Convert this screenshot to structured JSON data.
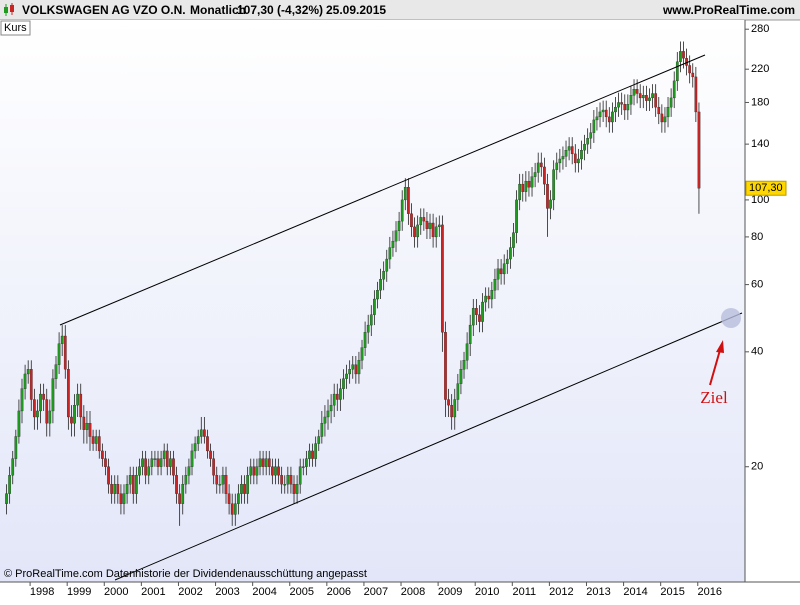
{
  "chart_data": {
    "type": "candlestick",
    "title": "VOLKSWAGEN AG VZO O.N.",
    "interval": "Monatlich",
    "quote": "107,30 (-4,32%)",
    "date": "25.09.2015",
    "source": "www.ProRealTime.com",
    "panel_label": "Kurs",
    "footer": "© ProRealTime.com  Datenhistorie der Dividendenausschüttung angepasst",
    "annotation": "Ziel",
    "up_color": "#1f9a1f",
    "down_color": "#c82424",
    "log_scale": true,
    "ylim": [
      10.1,
      296
    ],
    "yticks": [
      20,
      40,
      60,
      80,
      100,
      140,
      180,
      220,
      280
    ],
    "xlim": [
      1997,
      2016.95
    ],
    "xticks": [
      1998,
      1999,
      2000,
      2001,
      2002,
      2003,
      2004,
      2005,
      2006,
      2007,
      2008,
      2009,
      2010,
      2011,
      2012,
      2013,
      2014,
      2015,
      2016
    ],
    "last_price": {
      "value": 107.3,
      "label": "107,30"
    },
    "open": [
      16,
      17,
      19,
      21,
      24,
      28,
      32,
      35,
      36,
      30,
      27,
      28,
      31,
      30,
      26,
      28,
      34,
      37,
      42,
      44,
      36,
      27,
      26,
      29,
      31,
      27,
      25,
      26,
      24,
      23,
      24,
      22,
      21,
      20,
      18,
      17,
      18,
      17,
      16,
      17,
      18,
      19,
      17,
      19,
      20,
      21,
      19,
      20,
      21,
      21,
      20,
      21,
      22,
      20,
      21,
      19,
      17,
      16,
      18,
      19,
      20,
      22,
      23,
      24,
      25,
      24,
      22,
      21,
      19,
      18,
      18,
      19,
      17,
      16,
      15,
      16,
      17,
      18,
      17,
      19,
      20,
      19,
      20,
      21,
      20,
      21,
      20,
      19,
      20,
      19,
      18,
      18,
      19,
      18,
      17,
      18,
      20,
      20,
      21,
      22,
      21,
      23,
      24,
      26,
      27,
      28,
      29,
      31,
      30,
      32,
      34,
      35,
      36,
      37,
      35,
      38,
      41,
      45,
      47,
      50,
      55,
      58,
      62,
      65,
      70,
      75,
      78,
      83,
      88,
      100,
      108,
      92,
      85,
      80,
      86,
      90,
      88,
      84,
      87,
      80,
      85,
      86,
      45,
      30,
      29,
      27,
      30,
      33,
      36,
      38,
      42,
      47,
      52,
      50,
      48,
      54,
      56,
      55,
      58,
      62,
      66,
      64,
      68,
      70,
      75,
      82,
      100,
      110,
      105,
      112,
      108,
      115,
      118,
      125,
      122,
      110,
      95,
      100,
      120,
      125,
      128,
      130,
      135,
      138,
      132,
      125,
      128,
      135,
      140,
      145,
      150,
      162,
      165,
      170,
      172,
      165,
      160,
      170,
      175,
      180,
      178,
      172,
      178,
      188,
      195,
      190,
      185,
      188,
      182,
      185,
      190,
      175,
      168,
      160,
      165,
      175,
      185,
      205,
      230,
      245,
      235,
      225,
      215,
      210,
      170
    ],
    "high": [
      18,
      20,
      22,
      25,
      30,
      34,
      37,
      38,
      38,
      32,
      30,
      33,
      33,
      32,
      30,
      36,
      39,
      45,
      47,
      47,
      38,
      29,
      31,
      33,
      33,
      29,
      28,
      28,
      25,
      25,
      25,
      23,
      22,
      21,
      19,
      19,
      19,
      18,
      18,
      19,
      20,
      20,
      20,
      21,
      22,
      22,
      21,
      22,
      22,
      22,
      22,
      23,
      23,
      22,
      22,
      20,
      18,
      19,
      20,
      21,
      23,
      24,
      25,
      27,
      27,
      25,
      23,
      22,
      20,
      19,
      20,
      20,
      18,
      17,
      17,
      18,
      19,
      19,
      20,
      21,
      21,
      21,
      22,
      22,
      22,
      22,
      21,
      21,
      21,
      20,
      19,
      20,
      20,
      19,
      19,
      21,
      21,
      22,
      23,
      23,
      24,
      25,
      28,
      29,
      30,
      31,
      33,
      33,
      34,
      36,
      37,
      38,
      39,
      39,
      40,
      43,
      48,
      50,
      53,
      58,
      61,
      66,
      69,
      74,
      80,
      83,
      88,
      93,
      106,
      114,
      114,
      98,
      90,
      91,
      95,
      95,
      93,
      92,
      92,
      90,
      91,
      91,
      48,
      32,
      31,
      32,
      35,
      38,
      40,
      45,
      50,
      55,
      55,
      53,
      57,
      59,
      59,
      61,
      66,
      70,
      70,
      72,
      74,
      80,
      87,
      106,
      117,
      117,
      119,
      119,
      122,
      125,
      133,
      133,
      129,
      117,
      106,
      127,
      133,
      136,
      138,
      143,
      146,
      146,
      140,
      136,
      143,
      148,
      154,
      159,
      172,
      175,
      180,
      182,
      182,
      175,
      180,
      186,
      191,
      191,
      189,
      189,
      199,
      207,
      207,
      201,
      199,
      199,
      196,
      201,
      201,
      186,
      178,
      175,
      186,
      196,
      217,
      244,
      260,
      260,
      249,
      239,
      228,
      223,
      180
    ],
    "low": [
      15,
      16,
      18,
      20,
      23,
      26,
      30,
      33,
      28,
      25,
      25,
      26,
      28,
      24,
      24,
      26,
      32,
      35,
      39,
      34,
      25,
      24,
      24,
      27,
      25,
      23,
      23,
      22,
      22,
      22,
      21,
      20,
      19,
      17,
      16,
      16,
      16,
      15,
      15,
      16,
      17,
      16,
      16,
      18,
      19,
      18,
      18,
      19,
      20,
      19,
      19,
      20,
      19,
      19,
      18,
      16,
      14,
      15,
      17,
      18,
      19,
      21,
      22,
      23,
      23,
      21,
      20,
      18,
      17,
      17,
      17,
      16,
      15,
      14,
      14,
      15,
      16,
      16,
      16,
      18,
      18,
      18,
      19,
      19,
      19,
      19,
      18,
      18,
      18,
      17,
      17,
      17,
      17,
      16,
      16,
      17,
      19,
      19,
      20,
      20,
      20,
      22,
      23,
      24,
      25,
      26,
      27,
      28,
      28,
      30,
      32,
      33,
      34,
      33,
      33,
      36,
      39,
      42,
      44,
      47,
      52,
      55,
      58,
      61,
      66,
      71,
      73,
      78,
      83,
      94,
      86,
      80,
      75,
      75,
      81,
      83,
      79,
      79,
      75,
      75,
      80,
      40,
      27,
      27,
      25,
      25,
      28,
      31,
      34,
      36,
      39,
      44,
      47,
      45,
      45,
      51,
      52,
      52,
      55,
      58,
      60,
      60,
      64,
      66,
      71,
      77,
      94,
      99,
      99,
      102,
      102,
      108,
      111,
      115,
      103,
      80,
      89,
      94,
      113,
      118,
      120,
      122,
      127,
      124,
      118,
      118,
      120,
      127,
      132,
      136,
      141,
      152,
      155,
      160,
      155,
      150,
      150,
      160,
      165,
      167,
      162,
      162,
      167,
      177,
      179,
      174,
      174,
      171,
      171,
      174,
      165,
      158,
      150,
      150,
      155,
      165,
      174,
      193,
      216,
      221,
      212,
      202,
      197,
      160,
      92
    ],
    "close": [
      17,
      19,
      21,
      24,
      28,
      32,
      35,
      36,
      30,
      27,
      28,
      31,
      30,
      26,
      28,
      34,
      37,
      42,
      44,
      36,
      27,
      26,
      29,
      31,
      27,
      25,
      26,
      24,
      23,
      24,
      22,
      21,
      20,
      18,
      17,
      18,
      17,
      16,
      17,
      18,
      19,
      17,
      19,
      20,
      21,
      19,
      20,
      21,
      21,
      20,
      21,
      22,
      20,
      21,
      19,
      17,
      16,
      18,
      19,
      20,
      22,
      23,
      24,
      25,
      24,
      22,
      21,
      19,
      18,
      18,
      19,
      17,
      16,
      15,
      16,
      17,
      18,
      17,
      19,
      20,
      19,
      20,
      21,
      20,
      21,
      20,
      19,
      20,
      19,
      18,
      18,
      19,
      18,
      17,
      18,
      20,
      20,
      21,
      22,
      21,
      23,
      24,
      26,
      27,
      28,
      29,
      31,
      30,
      32,
      34,
      35,
      36,
      37,
      35,
      38,
      41,
      45,
      47,
      50,
      55,
      58,
      62,
      65,
      70,
      75,
      78,
      83,
      88,
      100,
      108,
      92,
      85,
      80,
      86,
      90,
      88,
      84,
      87,
      80,
      85,
      86,
      45,
      30,
      29,
      27,
      30,
      33,
      36,
      38,
      42,
      47,
      52,
      50,
      48,
      54,
      56,
      55,
      58,
      62,
      66,
      64,
      68,
      70,
      75,
      82,
      100,
      110,
      105,
      112,
      108,
      115,
      118,
      125,
      122,
      110,
      95,
      100,
      120,
      125,
      128,
      130,
      135,
      138,
      132,
      125,
      128,
      135,
      140,
      145,
      150,
      162,
      165,
      170,
      172,
      165,
      160,
      170,
      175,
      180,
      178,
      172,
      178,
      188,
      195,
      190,
      185,
      188,
      182,
      185,
      190,
      175,
      168,
      160,
      165,
      175,
      185,
      205,
      230,
      245,
      235,
      225,
      215,
      210,
      170,
      107.3
    ]
  }
}
